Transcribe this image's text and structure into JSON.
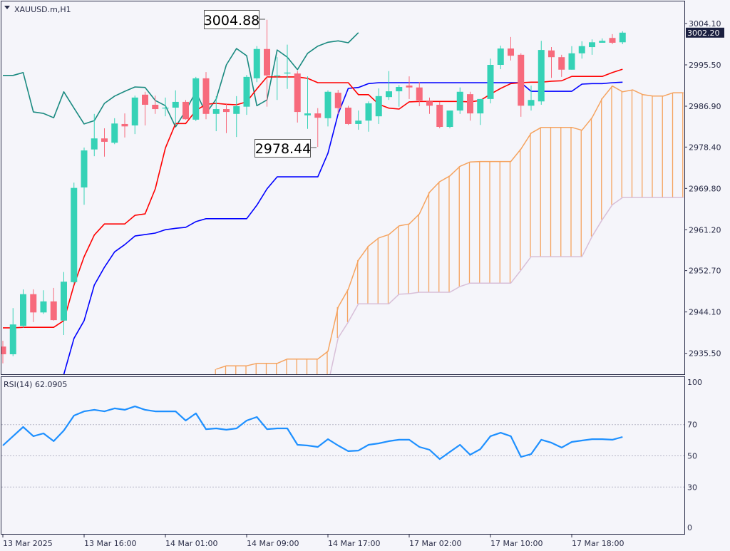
{
  "header": {
    "symbol_label": "XAUUSD.m,H1",
    "menu_icon": "triangle-down-icon"
  },
  "colors": {
    "background": "#f5f5fa",
    "axis": "#2a2d48",
    "bull": "#35d2b6",
    "bear": "#f76a7c",
    "tenkan": "#ff0000",
    "kijun": "#0000ff",
    "chikou": "#1a8a80",
    "senkou_a": "#f5a35f",
    "senkou_b": "#d8bfd8",
    "rsi": "#1e90ff",
    "current_price_bg": "#1b2040",
    "grid": "#b8b8c8"
  },
  "annotations": {
    "high_label": "3004.88",
    "low_label": "2978.44"
  },
  "current_price": "3002.20",
  "rsi_panel": {
    "label": "RSI(14) 62.0905",
    "levels": [
      70,
      50,
      30
    ]
  },
  "chart_data": [
    {
      "type": "candlestick",
      "title": "XAUUSD.m,H1",
      "indicator": "Ichimoku",
      "y_axis": {
        "ticks": [
          "3004.10",
          "2995.50",
          "2986.90",
          "2978.40",
          "2969.80",
          "2961.20",
          "2952.70",
          "2944.10",
          "2935.50"
        ],
        "ylim": [
          2930.0,
          3008.0
        ]
      },
      "x_axis": {
        "tick_labels": [
          "13 Mar 2025",
          "13 Mar 16:00",
          "14 Mar 01:00",
          "14 Mar 09:00",
          "14 Mar 17:00",
          "17 Mar 02:00",
          "17 Mar 10:00",
          "17 Mar 18:00"
        ],
        "tick_every_bars": 8
      },
      "grid": false,
      "ohlc": [
        [
          2936.9,
          2938.1,
          2933.4,
          2935.3
        ],
        [
          2935.3,
          2944.9,
          2934.9,
          2941.5
        ],
        [
          2941.2,
          2948.8,
          2940.8,
          2947.8
        ],
        [
          2947.8,
          2948.8,
          2942.0,
          2944.0
        ],
        [
          2944.0,
          2948.6,
          2943.7,
          2946.3
        ],
        [
          2946.3,
          2949.1,
          2942.3,
          2942.4
        ],
        [
          2942.3,
          2952.4,
          2939.3,
          2950.4
        ],
        [
          2950.3,
          2971.0,
          2950.0,
          2969.9
        ],
        [
          2970.0,
          2978.3,
          2966.4,
          2977.7
        ],
        [
          2977.9,
          2985.3,
          2976.5,
          2980.2
        ],
        [
          2980.2,
          2982.3,
          2976.4,
          2979.5
        ],
        [
          2979.3,
          2984.4,
          2979.0,
          2983.3
        ],
        [
          2983.2,
          2985.4,
          2980.4,
          2982.7
        ],
        [
          2982.9,
          2989.1,
          2981.1,
          2988.7
        ],
        [
          2989.3,
          2989.9,
          2982.9,
          2987.2
        ],
        [
          2987.2,
          2989.1,
          2985.3,
          2986.3
        ],
        [
          2986.5,
          2988.7,
          2984.8,
          2986.6
        ],
        [
          2986.6,
          2990.2,
          2983.0,
          2987.8
        ],
        [
          2987.8,
          2988.2,
          2984.1,
          2984.2
        ],
        [
          2984.1,
          2993.0,
          2983.8,
          2992.7
        ],
        [
          2992.7,
          2994.0,
          2984.2,
          2985.3
        ],
        [
          2985.3,
          2989.0,
          2981.7,
          2986.3
        ],
        [
          2986.3,
          2987.5,
          2981.3,
          2985.7
        ],
        [
          2985.3,
          2989.0,
          2980.5,
          2986.9
        ],
        [
          2986.8,
          2993.4,
          2985.1,
          2993.0
        ],
        [
          2992.7,
          2999.4,
          2991.9,
          2998.8
        ],
        [
          2998.8,
          3004.88,
          2986.8,
          2993.3
        ],
        [
          2993.2,
          2997.1,
          2988.2,
          2993.3
        ],
        [
          2993.7,
          2999.7,
          2990.5,
          2993.9
        ],
        [
          2993.7,
          2994.2,
          2983.5,
          2985.7
        ],
        [
          2985.0,
          2993.1,
          2982.2,
          2985.4
        ],
        [
          2985.4,
          2986.5,
          2978.44,
          2984.5
        ],
        [
          2984.4,
          2990.2,
          2982.7,
          2989.9
        ],
        [
          2989.7,
          2990.3,
          2985.3,
          2986.5
        ],
        [
          2986.6,
          2987.0,
          2983.0,
          2983.2
        ],
        [
          2983.2,
          2986.0,
          2982.0,
          2983.9
        ],
        [
          2983.9,
          2987.9,
          2981.6,
          2987.5
        ],
        [
          2984.8,
          2990.6,
          2983.2,
          2989.0
        ],
        [
          2988.8,
          2994.2,
          2988.2,
          2990.0
        ],
        [
          2990.0,
          2991.3,
          2986.8,
          2990.9
        ],
        [
          2991.2,
          2993.1,
          2988.4,
          2990.8
        ],
        [
          2990.8,
          2991.9,
          2986.9,
          2988.1
        ],
        [
          2987.9,
          2988.7,
          2985.3,
          2987.0
        ],
        [
          2987.2,
          2987.8,
          2982.3,
          2982.6
        ],
        [
          2982.6,
          2986.0,
          2982.3,
          2986.0
        ],
        [
          2986.0,
          2990.8,
          2985.3,
          2989.9
        ],
        [
          2989.4,
          2989.9,
          2983.9,
          2985.4
        ],
        [
          2985.4,
          2988.4,
          2983.0,
          2988.4
        ],
        [
          2988.4,
          2996.8,
          2987.5,
          2995.5
        ],
        [
          2995.5,
          2999.5,
          2994.6,
          2998.9
        ],
        [
          2998.9,
          3001.3,
          2996.4,
          2997.4
        ],
        [
          2997.6,
          2997.9,
          2984.7,
          2987.0
        ],
        [
          2987.0,
          2991.2,
          2986.0,
          2988.2
        ],
        [
          2987.9,
          3000.5,
          2987.2,
          2998.6
        ],
        [
          2998.5,
          2999.2,
          2992.8,
          2997.1
        ],
        [
          2997.1,
          2997.6,
          2993.0,
          2994.5
        ],
        [
          2994.5,
          2999.4,
          2994.5,
          2997.9
        ],
        [
          2997.9,
          3000.4,
          2996.8,
          2999.4
        ],
        [
          2999.2,
          3000.8,
          2997.6,
          3000.2
        ],
        [
          3000.1,
          3001.0,
          3000.1,
          3000.5
        ],
        [
          3001.1,
          3001.9,
          2999.8,
          3000.1
        ],
        [
          3000.2,
          3002.5,
          2999.8,
          3002.2
        ]
      ],
      "tenkan": [
        2940.8,
        2940.8,
        2940.9,
        2940.9,
        2940.9,
        2940.9,
        2942.3,
        2949.7,
        2955.6,
        2960.1,
        2962.4,
        2962.4,
        2962.4,
        2964.2,
        2964.5,
        2969.7,
        2978.2,
        2983.3,
        2983.3,
        2986.0,
        2987.3,
        2987.5,
        2987.3,
        2987.2,
        2987.8,
        2990.5,
        2993.0,
        2993.0,
        2993.0,
        2993.0,
        2992.7,
        2991.8,
        2991.8,
        2991.8,
        2991.8,
        2989.3,
        2989.3,
        2987.3,
        2986.5,
        2986.3,
        2987.8,
        2987.9,
        2987.9,
        2987.9,
        2987.9,
        2987.9,
        2987.8,
        2988.1,
        2989.4,
        2990.6,
        2991.6,
        2991.8,
        2991.9,
        2991.9,
        2992.1,
        2992.2,
        2993.1,
        2993.1,
        2993.1,
        2993.1,
        2993.9,
        2994.6
      ],
      "kijun": [
        null,
        null,
        null,
        null,
        null,
        null,
        2931.1,
        2938.6,
        2942.3,
        2949.7,
        2953.4,
        2956.6,
        2958.1,
        2959.9,
        2960.2,
        2960.5,
        2961.2,
        2961.5,
        2961.7,
        2962.9,
        2963.5,
        2963.5,
        2963.5,
        2963.5,
        2963.5,
        2966.3,
        2969.7,
        2972.2,
        2972.2,
        2972.2,
        2972.2,
        2972.2,
        2977.1,
        2985.3,
        2990.6,
        2990.8,
        2991.6,
        2991.8,
        2991.8,
        2991.8,
        2991.8,
        2991.8,
        2991.8,
        2991.8,
        2991.8,
        2991.8,
        2991.8,
        2991.8,
        2991.8,
        2991.8,
        2991.8,
        2991.8,
        2990.0,
        2990.0,
        2990.0,
        2990.0,
        2990.0,
        2991.5,
        2991.6,
        2991.6,
        2991.8,
        2991.9
      ],
      "chikou": [
        2993.3,
        2993.3,
        2993.9,
        2985.7,
        2985.4,
        2984.5,
        2989.9,
        2986.5,
        2983.2,
        2983.9,
        2987.5,
        2989.0,
        2990.0,
        2990.9,
        2990.8,
        2988.1,
        2987.0,
        2982.6,
        2986.0,
        2989.9,
        2985.4,
        2988.4,
        2995.5,
        2998.9,
        2997.4,
        2987.0,
        2988.2,
        2998.6,
        2997.1,
        2994.5,
        2997.9,
        2999.4,
        3000.2,
        3000.5,
        3000.1,
        3002.2
      ],
      "senkou_a_start_bar": 21,
      "senkou_a": [
        2932.2,
        2932.9,
        2932.9,
        2932.9,
        2933.4,
        2933.4,
        2933.4,
        2934.3,
        2934.3,
        2934.3,
        2934.3,
        2935.9,
        2945.1,
        2948.8,
        2954.9,
        2957.8,
        2959.5,
        2960.2,
        2962.0,
        2962.4,
        2964.5,
        2969.0,
        2971.2,
        2972.4,
        2974.4,
        2975.3,
        2975.4,
        2975.4,
        2975.4,
        2975.4,
        2978.0,
        2981.3,
        2982.5,
        2982.5,
        2982.5,
        2982.5,
        2981.9,
        2984.5,
        2988.5,
        2991.1,
        2989.9,
        2990.3,
        2989.3,
        2989.0,
        2989.0,
        2989.7,
        2989.7
      ],
      "senkou_b": [
        null,
        null,
        null,
        null,
        null,
        null,
        null,
        null,
        null,
        null,
        null,
        2929.0,
        2938.7,
        2942.0,
        2945.8,
        2945.8,
        2945.8,
        2945.8,
        2947.8,
        2947.9,
        2948.2,
        2948.2,
        2948.2,
        2948.2,
        2949.4,
        2950.1,
        2950.1,
        2950.1,
        2950.1,
        2950.1,
        2952.8,
        2955.6,
        2955.6,
        2955.6,
        2955.6,
        2955.6,
        2955.6,
        2959.8,
        2963.3,
        2966.4,
        2967.9,
        2967.9,
        2967.9,
        2967.9,
        2967.9,
        2967.9,
        2967.9
      ]
    },
    {
      "type": "line",
      "title": "RSI(14) 62.0905",
      "ylim": [
        0,
        100
      ],
      "y_ticks": [
        "100",
        "70",
        "50",
        "30",
        "0"
      ],
      "levels": [
        70,
        50,
        30
      ],
      "values": [
        56.6,
        62.6,
        68.5,
        62.6,
        64.4,
        59.4,
        66.2,
        75.8,
        78.5,
        79.5,
        78.5,
        80.4,
        79.5,
        81.7,
        79.5,
        78.5,
        78.5,
        78.5,
        72.6,
        77.2,
        67.1,
        67.6,
        66.7,
        67.6,
        72.6,
        74.9,
        67.1,
        67.6,
        67.6,
        57.1,
        56.6,
        55.7,
        60.7,
        56.6,
        53.0,
        53.4,
        57.1,
        58.0,
        59.4,
        60.3,
        60.3,
        55.7,
        53.9,
        47.9,
        52.5,
        57.1,
        50.7,
        54.3,
        62.6,
        64.8,
        62.6,
        49.3,
        51.1,
        60.3,
        58.4,
        55.3,
        58.9,
        59.8,
        60.7,
        60.7,
        60.3,
        62.09
      ]
    }
  ]
}
